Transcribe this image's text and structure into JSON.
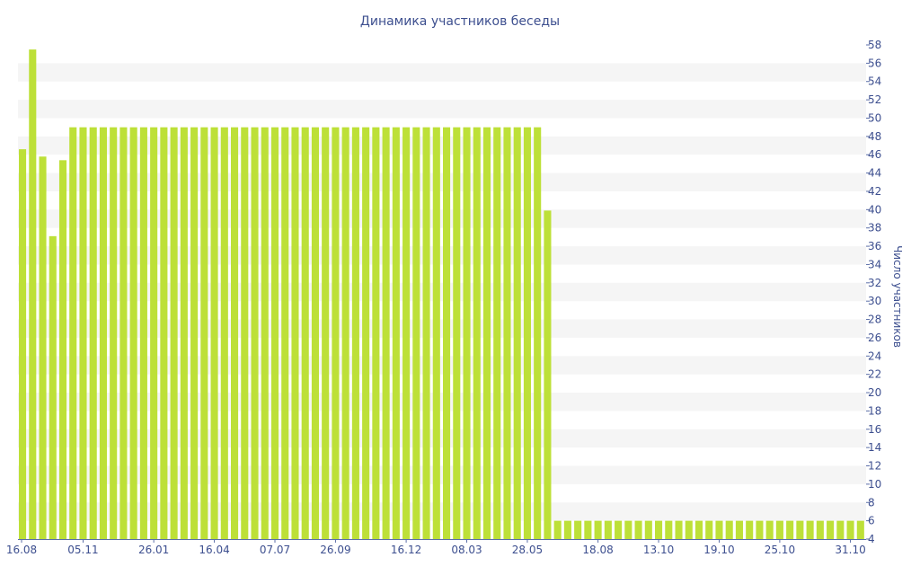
{
  "colors": {
    "bar": "#bde038",
    "text": "#3d4f8f",
    "band": "#f5f5f5",
    "axis": "#5b6ea8"
  },
  "chart_data": {
    "type": "bar",
    "title": "Динамика участников беседы",
    "xlabel": "",
    "ylabel": "Число участников",
    "y_axis_position": "right",
    "ylim": [
      4,
      58
    ],
    "y_tick_step": 2,
    "grid": "alternating horizontal bands",
    "x_tick_labels": [
      "16.08",
      "05.11",
      "26.01",
      "16.04",
      "07.07",
      "26.09",
      "16.12",
      "08.03",
      "28.05",
      "18.08",
      "13.10",
      "19.10",
      "25.10",
      "31.10"
    ],
    "values": [
      46.6,
      57.5,
      45.8,
      37.1,
      45.4,
      49,
      49,
      49,
      49,
      49,
      49,
      49,
      49,
      49,
      49,
      49,
      49,
      49,
      49,
      49,
      49,
      49,
      49,
      49,
      49,
      49,
      49,
      49,
      49,
      49,
      49,
      49,
      49,
      49,
      49,
      49,
      49,
      49,
      49,
      49,
      49,
      49,
      49,
      49,
      49,
      49,
      49,
      49,
      49,
      49,
      49,
      49,
      39.9,
      6,
      6,
      6,
      6,
      6,
      6,
      6,
      6,
      6,
      6,
      6,
      6,
      6,
      6,
      6,
      6,
      6,
      6,
      6,
      6,
      6,
      6,
      6,
      6,
      6,
      6,
      6,
      6,
      6,
      6,
      6
    ]
  }
}
